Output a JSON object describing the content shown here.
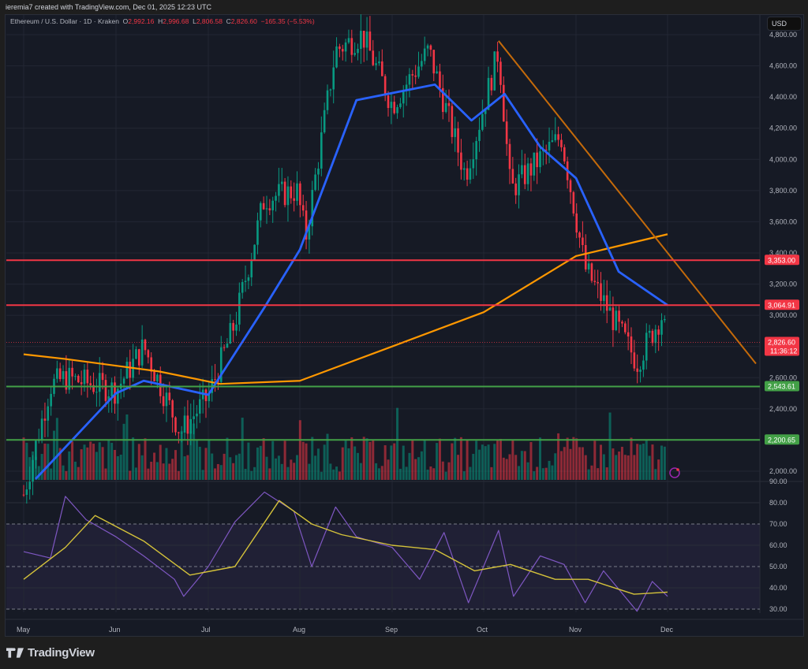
{
  "caption": "ieremia7 created with TradingView.com, Dec 01, 2025 12:23 UTC",
  "legend": {
    "symbol": "Ethereum / U.S. Dollar · 1D · Kraken",
    "o_label": "O",
    "o_value": "2,992.16",
    "h_label": "H",
    "h_value": "2,996.68",
    "l_label": "L",
    "l_value": "2,806.58",
    "c_label": "C",
    "c_value": "2,826.60",
    "change": "−165.35 (−5.53%)"
  },
  "currency_button": "USD",
  "brand": "TradingView",
  "colors": {
    "background": "#161a25",
    "up": "#089981",
    "down": "#f23645",
    "ema_fast": "#2962ff",
    "sma_slow": "#ff9800",
    "trendline": "#c46a0a",
    "resistance": "#f23645",
    "support": "#43a047",
    "rsi": "#7e57c2",
    "rsi_ma": "#d4c23a"
  },
  "price_axis": {
    "ticks": [
      "4,800.00",
      "4,600.00",
      "4,400.00",
      "4,200.00",
      "4,000.00",
      "3,800.00",
      "3,600.00",
      "3,400.00",
      "3,200.00",
      "3,000.00",
      "2,600.00",
      "2,400.00",
      "2,000.00"
    ],
    "badges": [
      {
        "label": "3,353.00",
        "kind": "resistance"
      },
      {
        "label": "3,064.91",
        "kind": "resistance"
      },
      {
        "label": "2,826.60",
        "sub": "11:36:12",
        "kind": "last"
      },
      {
        "label": "2,543.61",
        "kind": "support"
      },
      {
        "label": "2,200.65",
        "kind": "support"
      }
    ]
  },
  "rsi_axis": {
    "ticks": [
      "90.00",
      "80.00",
      "70.00",
      "60.00",
      "50.00",
      "40.00",
      "30.00"
    ]
  },
  "time_axis": {
    "ticks": [
      "May",
      "Jun",
      "Jul",
      "Aug",
      "Sep",
      "Oct",
      "Nov",
      "Dec"
    ]
  },
  "chart_data": [
    {
      "type": "candlestick",
      "title": "Ethereum / U.S. Dollar · 1D · Kraken",
      "ylabel": "USD",
      "ylim": [
        1980,
        4960
      ],
      "x_ticks": [
        "May",
        "Jun",
        "Jul",
        "Aug",
        "Sep",
        "Oct",
        "Nov",
        "Dec"
      ],
      "ohlc_last": {
        "open": 2992.16,
        "high": 2996.68,
        "low": 2806.58,
        "close": 2826.6,
        "change": -165.35,
        "change_pct": -5.53
      },
      "approx_close_path": [
        {
          "date": "May 01",
          "close": 1850
        },
        {
          "date": "May 10",
          "close": 2550
        },
        {
          "date": "May 15",
          "close": 2600
        },
        {
          "date": "Jun 01",
          "close": 2520
        },
        {
          "date": "Jun 10",
          "close": 2800
        },
        {
          "date": "Jun 22",
          "close": 2250
        },
        {
          "date": "Jul 01",
          "close": 2480
        },
        {
          "date": "Jul 10",
          "close": 2950
        },
        {
          "date": "Jul 20",
          "close": 3750
        },
        {
          "date": "Jul 31",
          "close": 3800
        },
        {
          "date": "Aug 03",
          "close": 3500
        },
        {
          "date": "Aug 13",
          "close": 4700
        },
        {
          "date": "Aug 22",
          "close": 4800
        },
        {
          "date": "Sep 01",
          "close": 4350
        },
        {
          "date": "Sep 13",
          "close": 4700
        },
        {
          "date": "Sep 25",
          "close": 3900
        },
        {
          "date": "Oct 06",
          "close": 4700
        },
        {
          "date": "Oct 10",
          "close": 3800
        },
        {
          "date": "Oct 27",
          "close": 4150
        },
        {
          "date": "Nov 04",
          "close": 3300
        },
        {
          "date": "Nov 21",
          "close": 2700
        },
        {
          "date": "Nov 29",
          "close": 3000
        },
        {
          "date": "Dec 01",
          "close": 2826.6
        }
      ],
      "overlays": [
        {
          "name": "EMA (fast)",
          "color": "#2962ff",
          "approx_values": [
            {
              "date": "May 05",
              "v": 1950
            },
            {
              "date": "Jun 01",
              "v": 2500
            },
            {
              "date": "Jun 10",
              "v": 2580
            },
            {
              "date": "Jul 01",
              "v": 2490
            },
            {
              "date": "Jul 20",
              "v": 3050
            },
            {
              "date": "Aug 01",
              "v": 3420
            },
            {
              "date": "Aug 20",
              "v": 4380
            },
            {
              "date": "Sep 15",
              "v": 4480
            },
            {
              "date": "Sep 27",
              "v": 4250
            },
            {
              "date": "Oct 08",
              "v": 4420
            },
            {
              "date": "Oct 20",
              "v": 4080
            },
            {
              "date": "Nov 01",
              "v": 3880
            },
            {
              "date": "Nov 15",
              "v": 3280
            },
            {
              "date": "Dec 01",
              "v": 3065
            }
          ]
        },
        {
          "name": "SMA (slow)",
          "color": "#ff9800",
          "approx_values": [
            {
              "date": "May 01",
              "v": 2750
            },
            {
              "date": "May 15",
              "v": 2720
            },
            {
              "date": "Jun 15",
              "v": 2640
            },
            {
              "date": "Jul 05",
              "v": 2560
            },
            {
              "date": "Aug 01",
              "v": 2580
            },
            {
              "date": "Sep 01",
              "v": 2800
            },
            {
              "date": "Oct 01",
              "v": 3020
            },
            {
              "date": "Nov 01",
              "v": 3380
            },
            {
              "date": "Dec 01",
              "v": 3520
            }
          ]
        },
        {
          "name": "Descending trendline",
          "color": "#c46a0a",
          "from": {
            "date": "Oct 06",
            "price": 4760
          },
          "to": {
            "date": "Dec 26",
            "price": 2690
          }
        }
      ],
      "horizontal_levels": [
        {
          "price": 3353.0,
          "type": "resistance"
        },
        {
          "price": 3064.91,
          "type": "resistance"
        },
        {
          "price": 2543.61,
          "type": "support"
        },
        {
          "price": 2200.65,
          "type": "support"
        }
      ],
      "volume": "histogram at bottom of price pane, colored by candle direction"
    },
    {
      "type": "line",
      "title": "RSI",
      "ylim": [
        25,
        92
      ],
      "bands": {
        "upper": 70,
        "middle": 50,
        "lower": 30
      },
      "series": [
        {
          "name": "RSI",
          "color": "#7e57c2",
          "approx_values": [
            {
              "date": "May 01",
              "v": 57
            },
            {
              "date": "May 10",
              "v": 54
            },
            {
              "date": "May 15",
              "v": 83
            },
            {
              "date": "May 22",
              "v": 72
            },
            {
              "date": "Jun 01",
              "v": 64
            },
            {
              "date": "Jun 10",
              "v": 55
            },
            {
              "date": "Jun 20",
              "v": 44
            },
            {
              "date": "Jun 23",
              "v": 36
            },
            {
              "date": "Jul 01",
              "v": 50
            },
            {
              "date": "Jul 10",
              "v": 71
            },
            {
              "date": "Jul 20",
              "v": 85
            },
            {
              "date": "Jul 30",
              "v": 76
            },
            {
              "date": "Aug 05",
              "v": 50
            },
            {
              "date": "Aug 13",
              "v": 78
            },
            {
              "date": "Aug 20",
              "v": 64
            },
            {
              "date": "Sep 01",
              "v": 59
            },
            {
              "date": "Sep 10",
              "v": 44
            },
            {
              "date": "Sep 18",
              "v": 66
            },
            {
              "date": "Sep 26",
              "v": 33
            },
            {
              "date": "Oct 06",
              "v": 67
            },
            {
              "date": "Oct 11",
              "v": 36
            },
            {
              "date": "Oct 20",
              "v": 55
            },
            {
              "date": "Oct 28",
              "v": 51
            },
            {
              "date": "Nov 04",
              "v": 33
            },
            {
              "date": "Nov 10",
              "v": 48
            },
            {
              "date": "Nov 21",
              "v": 29
            },
            {
              "date": "Nov 26",
              "v": 43
            },
            {
              "date": "Dec 01",
              "v": 36
            }
          ]
        },
        {
          "name": "RSI MA",
          "color": "#d4c23a",
          "approx_values": [
            {
              "date": "May 01",
              "v": 44
            },
            {
              "date": "May 15",
              "v": 59
            },
            {
              "date": "May 25",
              "v": 74
            },
            {
              "date": "Jun 10",
              "v": 62
            },
            {
              "date": "Jun 25",
              "v": 46
            },
            {
              "date": "Jul 10",
              "v": 50
            },
            {
              "date": "Jul 25",
              "v": 81
            },
            {
              "date": "Aug 05",
              "v": 70
            },
            {
              "date": "Aug 15",
              "v": 65
            },
            {
              "date": "Sep 01",
              "v": 60
            },
            {
              "date": "Sep 15",
              "v": 58
            },
            {
              "date": "Sep 28",
              "v": 48
            },
            {
              "date": "Oct 10",
              "v": 51
            },
            {
              "date": "Oct 25",
              "v": 44
            },
            {
              "date": "Nov 05",
              "v": 44
            },
            {
              "date": "Nov 20",
              "v": 37
            },
            {
              "date": "Dec 01",
              "v": 38
            }
          ]
        }
      ]
    }
  ]
}
